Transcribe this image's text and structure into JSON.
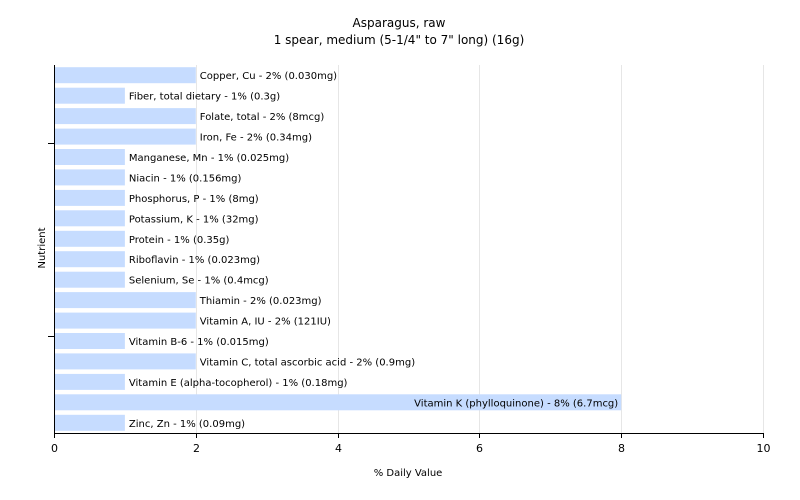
{
  "chart_data": {
    "type": "bar",
    "orientation": "horizontal",
    "title": "Asparagus, raw",
    "subtitle": "1 spear, medium (5-1/4\" to 7\" long) (16g)",
    "xlabel": "% Daily Value",
    "ylabel": "Nutrient",
    "xlim": [
      0,
      10
    ],
    "xticks": [
      "0",
      "2",
      "4",
      "6",
      "8",
      "10"
    ],
    "grid": true,
    "bar_color": "#c6dcff",
    "grid_color": "#e6e6e6",
    "categories": [
      "Copper, Cu",
      "Fiber, total dietary",
      "Folate, total",
      "Iron, Fe",
      "Manganese, Mn",
      "Niacin",
      "Phosphorus, P",
      "Potassium, K",
      "Protein",
      "Riboflavin",
      "Selenium, Se",
      "Thiamin",
      "Vitamin A, IU",
      "Vitamin B-6",
      "Vitamin C, total ascorbic acid",
      "Vitamin E (alpha-tocopherol)",
      "Vitamin K (phylloquinone)",
      "Zinc, Zn"
    ],
    "values": [
      2,
      1,
      2,
      2,
      1,
      1,
      1,
      1,
      1,
      1,
      1,
      2,
      2,
      1,
      2,
      1,
      8,
      1
    ],
    "labels": [
      "Copper, Cu - 2% (0.030mg)",
      "Fiber, total dietary - 1% (0.3g)",
      "Folate, total - 2% (8mcg)",
      "Iron, Fe - 2% (0.34mg)",
      "Manganese, Mn - 1% (0.025mg)",
      "Niacin - 1% (0.156mg)",
      "Phosphorus, P - 1% (8mg)",
      "Potassium, K - 1% (32mg)",
      "Protein - 1% (0.35g)",
      "Riboflavin - 1% (0.023mg)",
      "Selenium, Se - 1% (0.4mcg)",
      "Thiamin - 2% (0.023mg)",
      "Vitamin A, IU - 2% (121IU)",
      "Vitamin B-6 - 1% (0.015mg)",
      "Vitamin C, total ascorbic acid - 2% (0.9mg)",
      "Vitamin E (alpha-tocopherol) - 1% (0.18mg)",
      "Vitamin K (phylloquinone) - 8% (6.7mcg)",
      "Zinc, Zn - 1% (0.09mg)"
    ]
  }
}
